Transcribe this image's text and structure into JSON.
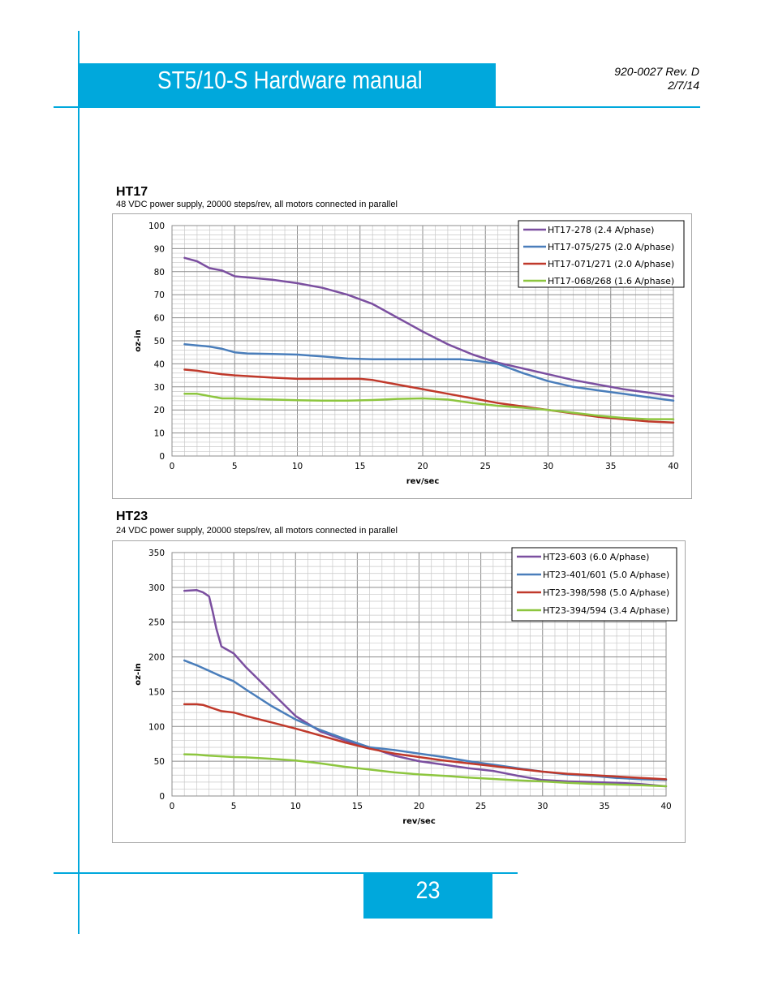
{
  "header": {
    "title": "ST5/10-S Hardware manual",
    "doc_number": "920-0027 Rev. D",
    "date": "2/7/14"
  },
  "footer": {
    "page_number": "23"
  },
  "colors": {
    "accent": "#00a8dc",
    "purple": "#7b4fa0",
    "blue": "#4a7ebb",
    "red": "#c0392b",
    "green": "#8dc63f"
  },
  "sections": [
    {
      "title": "HT17",
      "subtitle": "48 VDC power supply, 20000 steps/rev, all motors connected in parallel"
    },
    {
      "title": "HT23",
      "subtitle": "24 VDC power supply, 20000 steps/rev, all motors connected in parallel"
    }
  ],
  "chart_data": [
    {
      "type": "line",
      "xlabel": "rev/sec",
      "ylabel": "oz-in",
      "xlim": [
        0,
        40
      ],
      "ylim": [
        0,
        100
      ],
      "xticks": [
        0,
        5,
        10,
        15,
        20,
        25,
        30,
        35,
        40
      ],
      "yticks": [
        0,
        10,
        20,
        30,
        40,
        50,
        60,
        70,
        80,
        90,
        100
      ],
      "grid": true,
      "legend_position": "top-right",
      "series": [
        {
          "name": "HT17-278 (2.4 A/phase)",
          "color": "#7b4fa0",
          "x": [
            1,
            2,
            3,
            4,
            5,
            6,
            8,
            10,
            12,
            14,
            16,
            18,
            20,
            22,
            24,
            26,
            28,
            30,
            32,
            34,
            36,
            38,
            40
          ],
          "y": [
            86,
            84.5,
            81.5,
            80.5,
            78,
            77.5,
            76.5,
            75,
            73,
            70,
            66,
            60,
            54,
            48.5,
            44,
            40.5,
            38,
            35.5,
            33,
            31,
            29,
            27.5,
            26
          ]
        },
        {
          "name": "HT17-075/275 (2.0 A/phase)",
          "color": "#4a7ebb",
          "x": [
            1,
            2,
            3,
            4,
            5,
            6,
            8,
            10,
            12,
            14,
            16,
            18,
            20,
            22,
            23,
            24,
            26,
            28,
            30,
            32,
            34,
            36,
            38,
            40
          ],
          "y": [
            48.5,
            48,
            47.5,
            46.5,
            45,
            44.5,
            44.3,
            44,
            43.2,
            42.3,
            42,
            42,
            42,
            42,
            42,
            41.5,
            40,
            36,
            32.5,
            30,
            28.5,
            27,
            25.5,
            24
          ]
        },
        {
          "name": "HT17-071/271 (2.0 A/phase)",
          "color": "#c0392b",
          "x": [
            1,
            2,
            3,
            4,
            5,
            6,
            8,
            10,
            12,
            14,
            15,
            16,
            18,
            20,
            22,
            24,
            26,
            28,
            30,
            32,
            34,
            36,
            38,
            40
          ],
          "y": [
            37.5,
            37,
            36.2,
            35.5,
            35,
            34.7,
            34,
            33.5,
            33.5,
            33.5,
            33.5,
            33,
            31,
            29,
            27,
            25,
            23,
            21.5,
            20,
            18.5,
            17,
            16,
            15,
            14.5
          ]
        },
        {
          "name": "HT17-068/268 (1.6 A/phase)",
          "color": "#8dc63f",
          "x": [
            1,
            2,
            3,
            4,
            5,
            6,
            8,
            10,
            12,
            14,
            16,
            18,
            20,
            22,
            24,
            26,
            28,
            30,
            32,
            34,
            36,
            38,
            40
          ],
          "y": [
            27,
            27,
            26,
            25,
            25,
            24.8,
            24.5,
            24.2,
            24,
            24,
            24.3,
            24.8,
            25,
            24.5,
            23,
            21.8,
            21,
            20,
            18.8,
            17.5,
            16.5,
            16,
            16
          ]
        }
      ]
    },
    {
      "type": "line",
      "xlabel": "rev/sec",
      "ylabel": "oz-in",
      "xlim": [
        0,
        40
      ],
      "ylim": [
        0,
        350
      ],
      "xticks": [
        0,
        5,
        10,
        15,
        20,
        25,
        30,
        35,
        40
      ],
      "yticks": [
        0,
        50,
        100,
        150,
        200,
        250,
        300,
        350
      ],
      "grid": true,
      "legend_position": "top-right",
      "series": [
        {
          "name": "HT23-603 (6.0 A/phase)",
          "color": "#7b4fa0",
          "x": [
            1,
            2,
            2.5,
            3,
            3.3,
            3.6,
            4,
            4.5,
            5,
            6,
            8,
            10,
            12,
            14,
            16,
            18,
            20,
            22,
            24,
            26,
            28,
            30,
            32,
            34,
            36,
            38,
            40
          ],
          "y": [
            295,
            296,
            293,
            287,
            265,
            240,
            215,
            210,
            205,
            185,
            150,
            115,
            93,
            80,
            70,
            58,
            50,
            45,
            40,
            36,
            29,
            23,
            21,
            20,
            19,
            17,
            14
          ]
        },
        {
          "name": "HT23-401/601 (5.0 A/phase)",
          "color": "#4a7ebb",
          "x": [
            1,
            2,
            3,
            4,
            5,
            6,
            8,
            10,
            12,
            14,
            16,
            18,
            20,
            22,
            24,
            26,
            28,
            30,
            32,
            34,
            36,
            38,
            40
          ],
          "y": [
            195,
            188,
            180,
            172,
            165,
            153,
            130,
            110,
            95,
            82,
            70,
            66,
            61,
            56,
            50,
            45,
            40,
            35,
            31,
            29,
            26,
            24,
            23
          ]
        },
        {
          "name": "HT23-398/598 (5.0 A/phase)",
          "color": "#c0392b",
          "x": [
            1,
            2,
            2.5,
            3,
            4,
            5,
            6,
            8,
            10,
            12,
            14,
            16,
            18,
            20,
            22,
            24,
            26,
            28,
            30,
            32,
            34,
            36,
            38,
            40
          ],
          "y": [
            132,
            132,
            131,
            128,
            122,
            120,
            115,
            106,
            97,
            87,
            77,
            68,
            61,
            56,
            51,
            47,
            43,
            39,
            35,
            32,
            30,
            28,
            26,
            24
          ]
        },
        {
          "name": "HT23-394/594 (3.4 A/phase)",
          "color": "#8dc63f",
          "x": [
            1,
            2,
            3,
            4,
            5,
            6,
            8,
            10,
            12,
            14,
            16,
            18,
            20,
            22,
            24,
            26,
            28,
            30,
            32,
            34,
            36,
            38,
            40
          ],
          "y": [
            60,
            59.5,
            58,
            57,
            56,
            55.5,
            53.5,
            51,
            47,
            42,
            38,
            34,
            31,
            29,
            26.5,
            24.5,
            22.5,
            21,
            19,
            17.5,
            16.5,
            15.5,
            14
          ]
        }
      ]
    }
  ]
}
